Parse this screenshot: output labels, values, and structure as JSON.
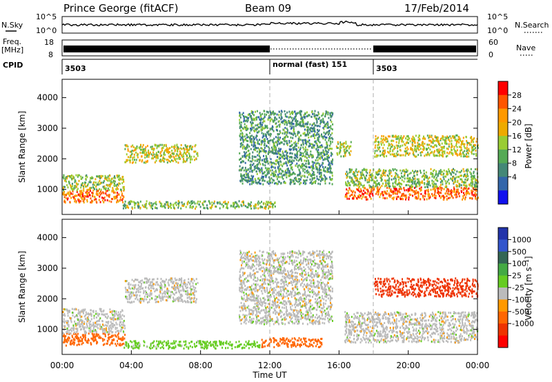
{
  "header": {
    "station": "Prince George (fitACF)",
    "beam": "Beam 09",
    "date": "17/Feb/2014"
  },
  "left_labels": {
    "nsky": "N.Sky",
    "freq": "Freq.",
    "freq_unit": "[MHz]",
    "cpid": "CPID"
  },
  "right_labels": {
    "nsearch": "N.Search",
    "nave": "Nave"
  },
  "nsky_panel": {
    "left_ticks": [
      "10^5",
      "10^0"
    ],
    "right_ticks": [
      "10^5",
      "10^0"
    ]
  },
  "freq_panel": {
    "left_ticks": [
      "18",
      "8"
    ],
    "right_ticks": [
      "60",
      "0"
    ]
  },
  "cpid_panel": {
    "segments": [
      {
        "start_hour": 0,
        "label": "3503"
      },
      {
        "start_hour": 12,
        "label": "normal (fast) 151"
      },
      {
        "start_hour": 18,
        "label": "3503"
      }
    ]
  },
  "colorbar_power": {
    "label": "Power [dB]",
    "ticks": [
      "28",
      "24",
      "20",
      "16",
      "12",
      "8",
      "4"
    ],
    "colors": [
      "#ff0000",
      "#ff5500",
      "#ff9900",
      "#eeaa00",
      "#99cc33",
      "#55aa55",
      "#448877",
      "#3366aa",
      "#1111ee"
    ]
  },
  "colorbar_velocity": {
    "label": "Velocity [m s⁻¹]",
    "ticks": [
      "1000",
      "500",
      "100",
      "25",
      "-25",
      "-100",
      "-500",
      "-1000"
    ],
    "colors": [
      "#2233aa",
      "#3355cc",
      "#336655",
      "#44aa44",
      "#66cc22",
      "#bbbbbb",
      "#ff9900",
      "#ff6600",
      "#ee3300",
      "#ff0000"
    ]
  },
  "chart_data": {
    "type": "heatmap",
    "xlabel": "Time UT",
    "ylabel": "Slant Range [km]",
    "x_ticks": [
      "00:00",
      "04:00",
      "08:00",
      "12:00",
      "16:00",
      "20:00",
      "00:00"
    ],
    "xlim_hours": [
      0,
      24
    ],
    "y_ticks": [
      1000,
      2000,
      3000,
      4000
    ],
    "ylim_km": [
      180,
      4600
    ],
    "vertical_markers_hours": [
      12,
      18
    ],
    "panels": [
      {
        "name": "Power",
        "units": "dB",
        "scatter_bands": [
          {
            "t_start": 0.0,
            "t_end": 3.6,
            "range_start": 600,
            "range_end": 1000,
            "value": 26
          },
          {
            "t_start": 0.0,
            "t_end": 3.6,
            "range_start": 1000,
            "range_end": 1500,
            "value": 15
          },
          {
            "t_start": 3.5,
            "t_end": 12.3,
            "range_start": 400,
            "range_end": 650,
            "value": 14
          },
          {
            "t_start": 3.6,
            "t_end": 7.8,
            "range_start": 1900,
            "range_end": 2500,
            "value": 18
          },
          {
            "t_start": 10.2,
            "t_end": 15.6,
            "range_start": 1200,
            "range_end": 3600,
            "value": 10
          },
          {
            "t_start": 15.8,
            "t_end": 16.7,
            "range_start": 2100,
            "range_end": 2600,
            "value": 16
          },
          {
            "t_start": 16.3,
            "t_end": 24.0,
            "range_start": 700,
            "range_end": 1100,
            "value": 27
          },
          {
            "t_start": 16.3,
            "t_end": 24.0,
            "range_start": 1100,
            "range_end": 1700,
            "value": 14
          },
          {
            "t_start": 18.0,
            "t_end": 24.0,
            "range_start": 2100,
            "range_end": 2800,
            "value": 18
          }
        ]
      },
      {
        "name": "Velocity",
        "units": "m s-1",
        "scatter_bands": [
          {
            "t_start": 0.0,
            "t_end": 3.6,
            "range_start": 500,
            "range_end": 900,
            "value": -200
          },
          {
            "t_start": 0.0,
            "t_end": 3.6,
            "range_start": 900,
            "range_end": 1700,
            "value": 0
          },
          {
            "t_start": 3.5,
            "t_end": 8.0,
            "range_start": 400,
            "range_end": 650,
            "value": 50
          },
          {
            "t_start": 8.0,
            "t_end": 11.5,
            "range_start": 400,
            "range_end": 650,
            "value": 60
          },
          {
            "t_start": 11.5,
            "t_end": 15.0,
            "range_start": 450,
            "range_end": 750,
            "value": -200
          },
          {
            "t_start": 3.6,
            "t_end": 7.8,
            "range_start": 1900,
            "range_end": 2700,
            "value": 0
          },
          {
            "t_start": 10.2,
            "t_end": 15.6,
            "range_start": 1200,
            "range_end": 3600,
            "value": 0
          },
          {
            "t_start": 16.3,
            "t_end": 24.0,
            "range_start": 600,
            "range_end": 1600,
            "value": 0
          },
          {
            "t_start": 18.0,
            "t_end": 24.0,
            "range_start": 2100,
            "range_end": 2700,
            "value": -300
          }
        ]
      }
    ]
  }
}
